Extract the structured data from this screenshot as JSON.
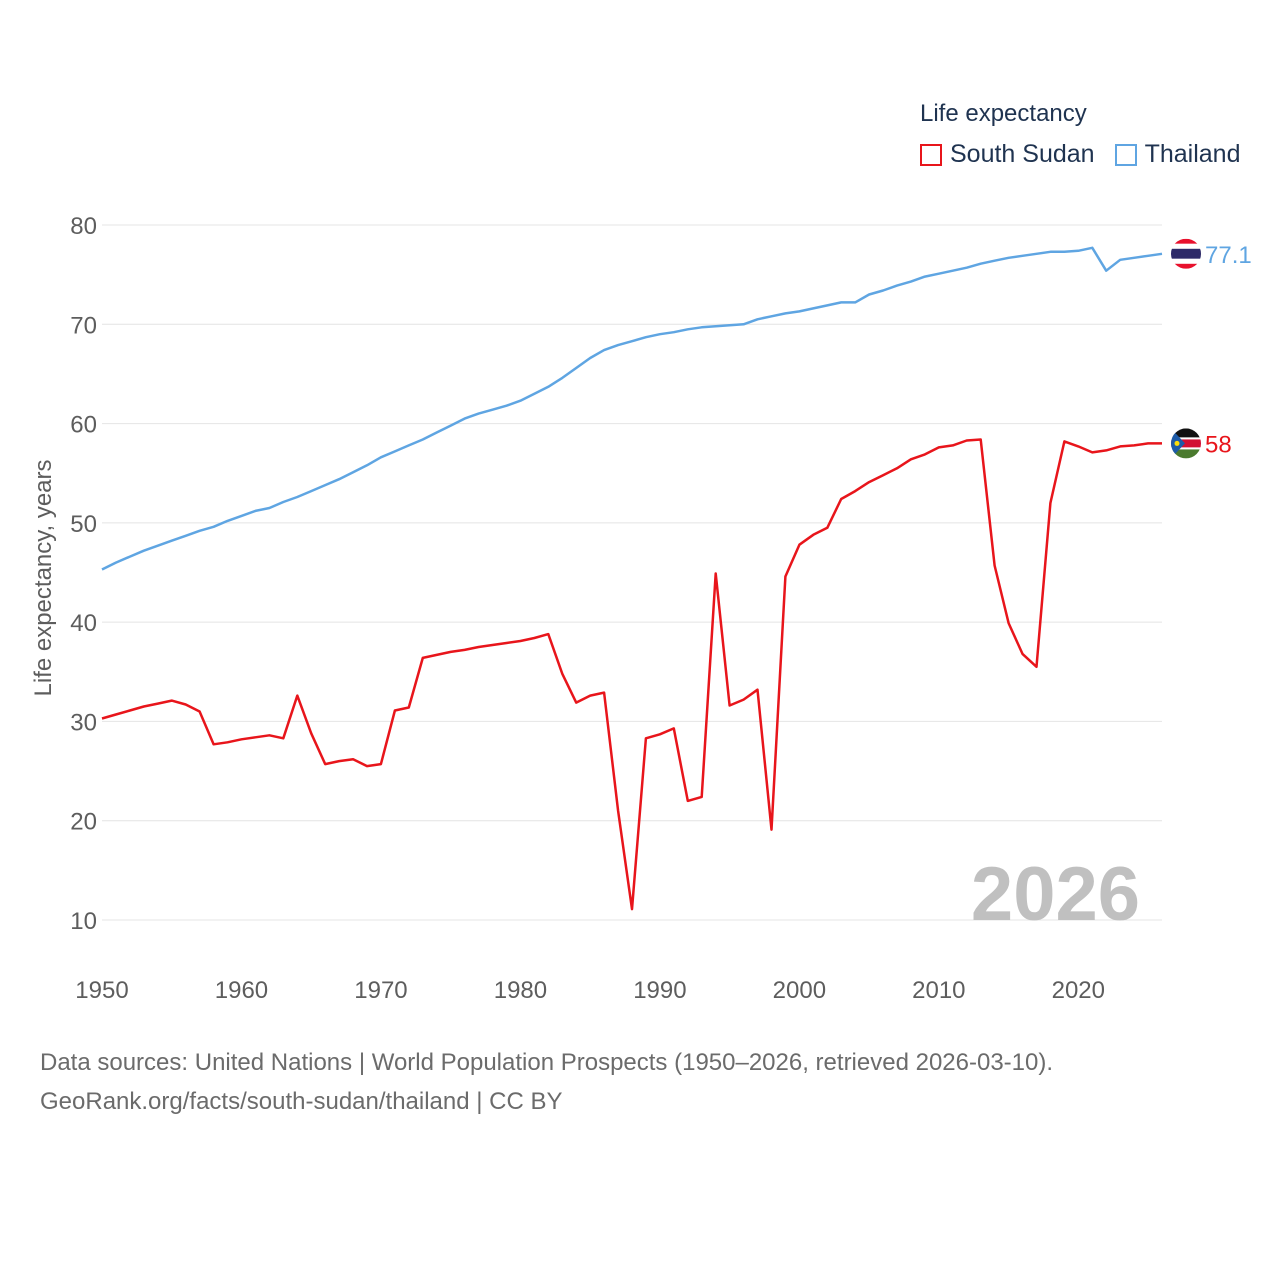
{
  "legend": {
    "title": "Life expectancy",
    "south_sudan": "South Sudan",
    "thailand": "Thailand"
  },
  "footer": {
    "line1": "Data sources: United Nations | World Population Prospects (1950–2026, retrieved 2026-03-10).",
    "line2": "GeoRank.org/facts/south-sudan/thailand | CC BY"
  },
  "chart_data": {
    "type": "line",
    "ylabel": "Life expectancy, years",
    "xlabel": "",
    "year_label": "2026",
    "xlim": [
      1950,
      2026
    ],
    "ylim": [
      10,
      80
    ],
    "xticks": [
      1950,
      1960,
      1970,
      1980,
      1990,
      2000,
      2010,
      2020
    ],
    "yticks": [
      10,
      20,
      30,
      40,
      50,
      60,
      70,
      80
    ],
    "grid": true,
    "legend_position": "top-right",
    "x": [
      1950,
      1951,
      1952,
      1953,
      1954,
      1955,
      1956,
      1957,
      1958,
      1959,
      1960,
      1961,
      1962,
      1963,
      1964,
      1965,
      1966,
      1967,
      1968,
      1969,
      1970,
      1971,
      1972,
      1973,
      1974,
      1975,
      1976,
      1977,
      1978,
      1979,
      1980,
      1981,
      1982,
      1983,
      1984,
      1985,
      1986,
      1987,
      1988,
      1989,
      1990,
      1991,
      1992,
      1993,
      1994,
      1995,
      1996,
      1997,
      1998,
      1999,
      2000,
      2001,
      2002,
      2003,
      2004,
      2005,
      2006,
      2007,
      2008,
      2009,
      2010,
      2011,
      2012,
      2013,
      2014,
      2015,
      2016,
      2017,
      2018,
      2019,
      2020,
      2021,
      2022,
      2023,
      2024,
      2025,
      2026
    ],
    "series": [
      {
        "name": "South Sudan",
        "color": "#e8151b",
        "end_label": "58",
        "values": [
          30.3,
          30.7,
          31.1,
          31.5,
          31.8,
          32.1,
          31.7,
          31.0,
          27.7,
          27.9,
          28.2,
          28.4,
          28.6,
          28.3,
          32.6,
          28.8,
          25.7,
          26.0,
          26.2,
          25.5,
          25.7,
          31.1,
          31.4,
          36.4,
          36.7,
          37.0,
          37.2,
          37.5,
          37.7,
          37.9,
          38.1,
          38.4,
          38.8,
          34.8,
          31.9,
          32.6,
          32.9,
          21.0,
          11.1,
          28.3,
          28.7,
          29.3,
          22.0,
          22.4,
          44.9,
          31.6,
          32.2,
          33.2,
          19.1,
          44.6,
          47.8,
          48.8,
          49.5,
          52.4,
          53.2,
          54.1,
          54.8,
          55.5,
          56.4,
          56.9,
          57.6,
          57.8,
          58.3,
          58.4,
          45.7,
          39.9,
          36.8,
          35.5,
          52.0,
          58.2,
          57.7,
          57.1,
          57.3,
          57.7,
          57.8,
          58.0,
          58.0
        ]
      },
      {
        "name": "Thailand",
        "color": "#5fa5e2",
        "end_label": "77.1",
        "values": [
          45.3,
          46.0,
          46.6,
          47.2,
          47.7,
          48.2,
          48.7,
          49.2,
          49.6,
          50.2,
          50.7,
          51.2,
          51.5,
          52.1,
          52.6,
          53.2,
          53.8,
          54.4,
          55.1,
          55.8,
          56.6,
          57.2,
          57.8,
          58.4,
          59.1,
          59.8,
          60.5,
          61.0,
          61.4,
          61.8,
          62.3,
          63.0,
          63.7,
          64.6,
          65.6,
          66.6,
          67.4,
          67.9,
          68.3,
          68.7,
          69.0,
          69.2,
          69.5,
          69.7,
          69.8,
          69.9,
          70.0,
          70.5,
          70.8,
          71.1,
          71.3,
          71.6,
          71.9,
          72.2,
          72.2,
          73.0,
          73.4,
          73.9,
          74.3,
          74.8,
          75.1,
          75.4,
          75.7,
          76.1,
          76.4,
          76.7,
          76.9,
          77.1,
          77.3,
          77.3,
          77.4,
          77.7,
          75.4,
          76.5,
          76.7,
          76.9,
          77.1
        ]
      }
    ]
  }
}
